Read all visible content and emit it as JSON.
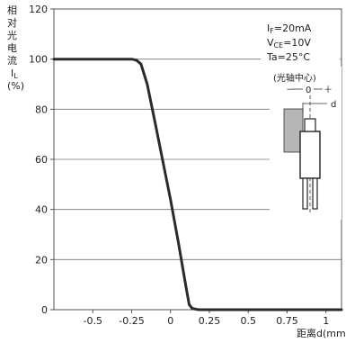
{
  "chart_data": {
    "type": "line",
    "ylabel_chars": [
      "相",
      "对",
      "光",
      "电",
      "流"
    ],
    "ylabel_symbol": "I",
    "ylabel_symbol_sub": "L",
    "ylabel_unit": "(%)",
    "xlabel": "距离d(mm",
    "xlim": [
      -0.75,
      1.1
    ],
    "ylim": [
      0,
      120
    ],
    "x_ticks": [
      -0.5,
      -0.25,
      0,
      0.25,
      0.5,
      0.75,
      1
    ],
    "x_tick_labels": [
      "-0.5",
      "-0.25",
      "0",
      "0.25",
      "0.5",
      "0.75",
      "1"
    ],
    "y_ticks": [
      0,
      20,
      40,
      60,
      80,
      100,
      120
    ],
    "y_tick_labels": [
      "0",
      "20",
      "40",
      "60",
      "80",
      "100",
      "120"
    ],
    "grid": true,
    "series": [
      {
        "x": [
          -0.75,
          -0.5,
          -0.25,
          -0.22,
          -0.19,
          -0.15,
          -0.1,
          0,
          0.05,
          0.1,
          0.12,
          0.14,
          0.18,
          0.3,
          0.5,
          1.0,
          1.1
        ],
        "y": [
          100,
          100,
          100,
          99.6,
          98,
          90,
          75,
          44,
          27,
          9,
          2,
          0.5,
          0,
          0,
          0,
          0,
          0
        ]
      }
    ],
    "conditions": {
      "if_symbol": "I",
      "if_sub": "F",
      "if_value": "=20mA",
      "vce_symbol": "V",
      "vce_sub": "CE",
      "vce_value": "=10V",
      "ta": "Ta=25°C"
    },
    "inset": {
      "label": "(光轴中心)",
      "minus": "－",
      "zero": "0",
      "plus": "＋",
      "d_label": "d"
    }
  }
}
